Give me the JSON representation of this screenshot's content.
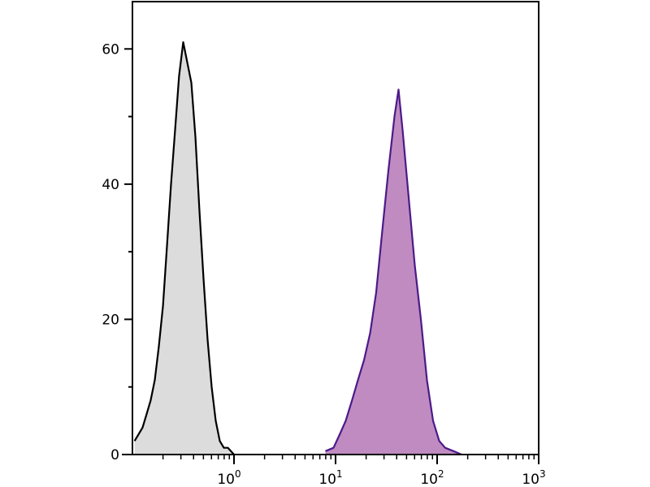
{
  "chart_data": {
    "type": "area",
    "title": "",
    "xlabel": "",
    "ylabel": "",
    "x_scale": "log",
    "xlim": [
      0.1,
      1000
    ],
    "ylim": [
      0,
      67
    ],
    "grid": false,
    "x_ticks": [
      1,
      10,
      100,
      1000
    ],
    "x_tick_labels": [
      {
        "base": "10",
        "exp": "0"
      },
      {
        "base": "10",
        "exp": "1"
      },
      {
        "base": "10",
        "exp": "2"
      },
      {
        "base": "10",
        "exp": "3"
      }
    ],
    "y_ticks": [
      0,
      20,
      40,
      60
    ],
    "y_tick_labels": [
      "0",
      "20",
      "40",
      "60"
    ],
    "y_minor_ticks": [
      10,
      30,
      50
    ],
    "series": [
      {
        "fill": "#dcdcdc",
        "stroke": "#000000",
        "x": [
          0.105,
          0.115,
          0.126,
          0.138,
          0.151,
          0.166,
          0.182,
          0.2,
          0.219,
          0.24,
          0.263,
          0.288,
          0.316,
          0.347,
          0.38,
          0.417,
          0.457,
          0.501,
          0.55,
          0.603,
          0.661,
          0.724,
          0.794,
          0.871,
          1.0
        ],
        "y": [
          2,
          3,
          4,
          6,
          8,
          11,
          16,
          22,
          31,
          40,
          48,
          56,
          61,
          58,
          55,
          47,
          36,
          26,
          17,
          10,
          5,
          2,
          1,
          1,
          0
        ]
      },
      {
        "fill": "#c08bc0",
        "stroke": "#4b1a8a",
        "x": [
          7.94,
          9.55,
          11.0,
          12.6,
          14.5,
          16.6,
          19.1,
          21.9,
          25.1,
          28.8,
          33.1,
          38.0,
          41.7,
          45.7,
          52.5,
          60.3,
          69.2,
          79.4,
          91.2,
          105,
          120,
          145,
          174
        ],
        "y": [
          0.5,
          1,
          3,
          5,
          8,
          11,
          14,
          18,
          24,
          33,
          42,
          50,
          54,
          48,
          38,
          28,
          20,
          11,
          5,
          2,
          1,
          0.5,
          0
        ]
      }
    ]
  }
}
